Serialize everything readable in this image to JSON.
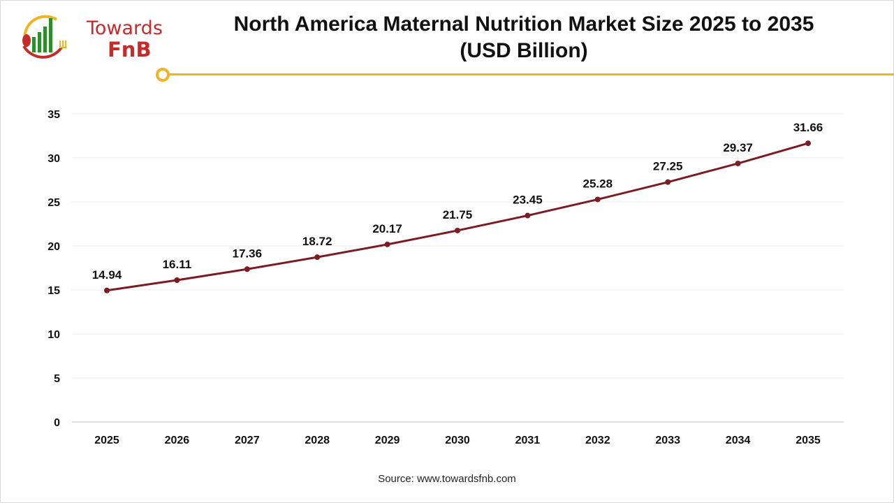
{
  "logo": {
    "line1": "Towards",
    "line2": "FnB"
  },
  "colors": {
    "line": "#7b1c25",
    "accent": "#f0b322",
    "logo_red": "#c62b2b",
    "logo_green": "#2e8b2e"
  },
  "chart_data": {
    "type": "line",
    "title": "North America Maternal Nutrition Market Size 2025 to 2035",
    "subtitle": "(USD Billion)",
    "xlabel": "",
    "ylabel": "",
    "categories": [
      "2025",
      "2026",
      "2027",
      "2028",
      "2029",
      "2030",
      "2031",
      "2032",
      "2033",
      "2034",
      "2035"
    ],
    "values": [
      14.94,
      16.11,
      17.36,
      18.72,
      20.17,
      21.75,
      23.45,
      25.28,
      27.25,
      29.37,
      31.66
    ],
    "data_labels": [
      "14.94",
      "16.11",
      "17.36",
      "18.72",
      "20.17",
      "21.75",
      "23.45",
      "25.28",
      "27.25",
      "29.37",
      "31.66"
    ],
    "ylim": [
      0,
      35
    ],
    "yticks": [
      "0",
      "5",
      "10",
      "15",
      "20",
      "25",
      "30",
      "35"
    ],
    "grid": true,
    "legend": "none"
  },
  "source": "Source: www.towardsfnb.com"
}
